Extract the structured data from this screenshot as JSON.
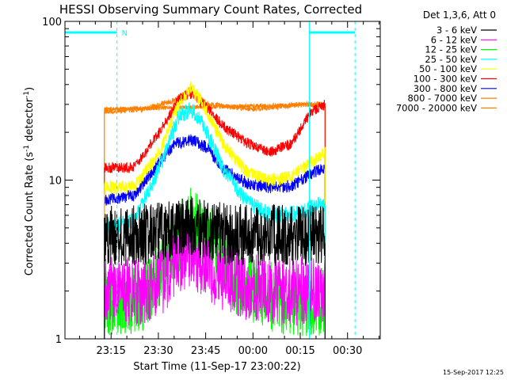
{
  "chart_data": {
    "type": "line",
    "title": "HESSI Observing Summary Count Rates, Corrected",
    "xlabel": "Start Time (11-Sep-17 23:00:22)",
    "ylabel": "Corrected Count Rate (s⁻¹ detector⁻¹)",
    "ylabel_main": "Corrected Count Rate (s",
    "ylabel_exp1": "-1",
    "ylabel_mid": " detector",
    "ylabel_exp2": "-1",
    "ylabel_close": ")",
    "yscale": "log",
    "ylim": [
      1,
      100
    ],
    "xlim": [
      "23:00:22",
      "00:40:22"
    ],
    "xtick_labels": [
      "23:15",
      "23:30",
      "23:45",
      "00:00",
      "00:15",
      "00:30"
    ],
    "xtick_minutes": [
      14.63,
      29.63,
      44.63,
      59.63,
      74.63,
      89.63
    ],
    "ytick_labels": [
      "1",
      "10",
      "100"
    ],
    "ytick_values": [
      1,
      10,
      100
    ],
    "legend_title": "Det 1,3,6, Att 0",
    "legend_placement": "right",
    "timestamp": "15-Sep-2017 12:25",
    "annotation_flag": "N",
    "annotation_color": "#00ffff",
    "data_range_minutes": [
      12.5,
      82.5
    ],
    "night_intervals_minutes": [
      [
        16.5,
        77.5
      ]
    ],
    "series": [
      {
        "name": "3 - 6 keV",
        "color": "#000000",
        "t": [
          12.5,
          20,
          30,
          35,
          40,
          45,
          50,
          60,
          70,
          75,
          80,
          82.5
        ],
        "v": [
          4.5,
          4.5,
          4.6,
          4.8,
          5.2,
          4.9,
          4.6,
          4.5,
          4.5,
          4.5,
          4.5,
          4.5
        ],
        "noise": 0.45
      },
      {
        "name": "6 - 12 keV",
        "color": "#ff00ff",
        "t": [
          12.5,
          25,
          32,
          37,
          40,
          43,
          48,
          55,
          70,
          82.5
        ],
        "v": [
          2.0,
          2.0,
          2.4,
          3.2,
          3.6,
          3.0,
          2.6,
          2.2,
          2.0,
          2.0
        ],
        "noise": 0.5
      },
      {
        "name": "12 - 25 keV",
        "color": "#00ff00",
        "t": [
          12.5,
          25,
          30,
          35,
          40,
          45,
          50,
          55,
          70,
          82.5
        ],
        "v": [
          1.7,
          1.8,
          2.5,
          4.0,
          5.5,
          4.5,
          3.2,
          2.2,
          1.7,
          1.7
        ],
        "noise": 0.5
      },
      {
        "name": "25 - 50 keV",
        "color": "#00ffff",
        "t": [
          12.5,
          22,
          30,
          36,
          40,
          44,
          50,
          57,
          65,
          75,
          80,
          82.5
        ],
        "v": [
          5.0,
          5.5,
          12,
          25,
          28,
          22,
          12,
          7.5,
          6.0,
          6.2,
          7.0,
          7.0
        ],
        "noise": 0.12
      },
      {
        "name": "50 - 100 keV",
        "color": "#ffff00",
        "t": [
          12.5,
          22,
          30,
          36,
          40,
          44,
          50,
          58,
          65,
          72,
          78,
          82.5
        ],
        "v": [
          9.0,
          9.0,
          15,
          30,
          38,
          30,
          17,
          11,
          10,
          10.5,
          13,
          15
        ],
        "noise": 0.1
      },
      {
        "name": "100 - 300 keV",
        "color": "#ff0000",
        "t": [
          12.5,
          22,
          30,
          36,
          40,
          44,
          50,
          58,
          65,
          72,
          78,
          82.5
        ],
        "v": [
          12,
          12,
          20,
          32,
          35,
          30,
          22,
          17,
          15,
          17,
          27,
          30
        ],
        "noise": 0.08
      },
      {
        "name": "300 - 800 keV",
        "color": "#0000ff",
        "t": [
          12.5,
          22,
          30,
          35,
          40,
          45,
          50,
          58,
          65,
          72,
          78,
          82.5
        ],
        "v": [
          7.5,
          8.0,
          13,
          17,
          18,
          16,
          12,
          9.5,
          9.0,
          9.2,
          11,
          12
        ],
        "noise": 0.09
      },
      {
        "name": "800 - 7000 keV",
        "color": "#ff8000",
        "t": [
          12.5,
          25,
          35,
          40,
          45,
          60,
          75,
          82.5
        ],
        "v": [
          27,
          28,
          32,
          38,
          30,
          28,
          30,
          30
        ],
        "noise": 0.04
      },
      {
        "name": "7000 - 20000 keV",
        "color": "#ff8000",
        "t": [
          12.5,
          82.5
        ],
        "v": [
          28,
          30
        ],
        "noise": 0.03
      }
    ]
  }
}
